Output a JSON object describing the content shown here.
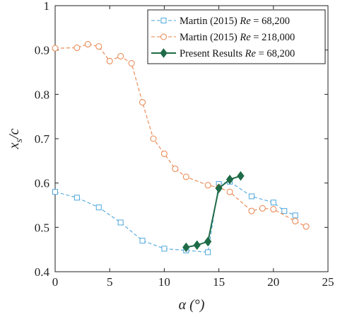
{
  "chart_data": {
    "type": "line",
    "xlabel": "α (°)",
    "ylabel_main": "x",
    "ylabel_sub": "s",
    "ylabel_suffix": "/c",
    "xlim": [
      0,
      25
    ],
    "ylim": [
      0.4,
      1.0
    ],
    "xticks": [
      0,
      5,
      10,
      15,
      20,
      25
    ],
    "yticks": [
      0.4,
      0.5,
      0.6,
      0.7,
      0.8,
      0.9,
      1.0
    ],
    "xtick_labels": [
      "0",
      "5",
      "10",
      "15",
      "20",
      "25"
    ],
    "ytick_labels": [
      "0.4",
      "0.5",
      "0.6",
      "0.7",
      "0.8",
      "0.9",
      "1"
    ],
    "grid": false,
    "legend_position": "top-right",
    "series": [
      {
        "name": "Martin (2015) Re = 68,200",
        "legend_prefix": "Martin (2015) ",
        "legend_italic": "Re",
        "legend_suffix": " = 68,200",
        "color": "#4ea6dc",
        "marker": "square",
        "dashed": true,
        "x": [
          0,
          2,
          4,
          6,
          8,
          10,
          12,
          14,
          15,
          16,
          18,
          20,
          21,
          22
        ],
        "y": [
          0.58,
          0.567,
          0.545,
          0.511,
          0.47,
          0.452,
          0.448,
          0.444,
          0.598,
          0.603,
          0.57,
          0.556,
          0.537,
          0.527
        ]
      },
      {
        "name": "Martin (2015) Re = 218,000",
        "legend_prefix": "Martin (2015) ",
        "legend_italic": "Re",
        "legend_suffix": " = 218,000",
        "color": "#e8834b",
        "marker": "circle",
        "dashed": true,
        "x": [
          0,
          2,
          3,
          4,
          5,
          6,
          7,
          8,
          9,
          10,
          11,
          12,
          14,
          15,
          16,
          18,
          19,
          20,
          22,
          23
        ],
        "y": [
          0.904,
          0.905,
          0.913,
          0.908,
          0.875,
          0.886,
          0.87,
          0.782,
          0.7,
          0.666,
          0.632,
          0.614,
          0.595,
          0.59,
          0.58,
          0.537,
          0.543,
          0.541,
          0.514,
          0.502
        ]
      },
      {
        "name": "Present Results Re = 68,200",
        "legend_prefix": "Present Results ",
        "legend_italic": "Re",
        "legend_suffix": " = 68,200",
        "color": "#1e6b47",
        "marker": "diamond",
        "dashed": false,
        "x": [
          12,
          13,
          14,
          15,
          16,
          17
        ],
        "y": [
          0.455,
          0.46,
          0.468,
          0.588,
          0.608,
          0.616
        ]
      }
    ]
  }
}
